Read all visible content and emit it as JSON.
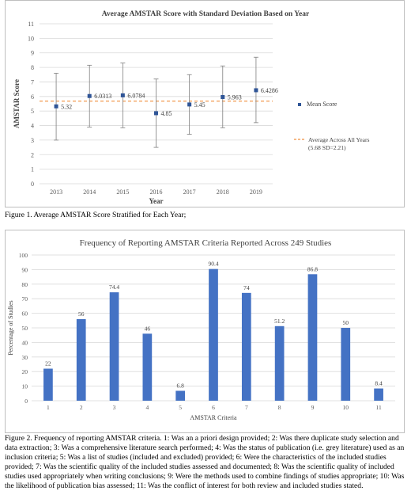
{
  "chart_data": [
    {
      "type": "scatter",
      "title": "Average AMSTAR Score with Standard Deviation Based on Year",
      "xlabel": "Year",
      "ylabel": "AMSTAR Score",
      "ylim": [
        0,
        11
      ],
      "yticks": [
        0,
        1,
        2,
        3,
        4,
        5,
        6,
        7,
        8,
        9,
        10,
        11
      ],
      "categories": [
        "2013",
        "2014",
        "2015",
        "2016",
        "2017",
        "2018",
        "2019"
      ],
      "series": [
        {
          "name": "Mean Score",
          "values": [
            5.32,
            6.0313,
            6.0784,
            4.85,
            5.45,
            5.963,
            6.4286
          ],
          "labels": [
            "5.32",
            "6.0313",
            "6.0784",
            "4.85",
            "5.45",
            "5.963",
            "6.4286"
          ],
          "error_low": [
            3.0,
            3.9,
            3.85,
            2.5,
            3.4,
            3.85,
            4.2
          ],
          "error_high": [
            7.6,
            8.15,
            8.3,
            7.2,
            7.5,
            8.1,
            8.7
          ],
          "color": "#2f5597"
        }
      ],
      "reference_line": {
        "value": 5.68,
        "label_line1": "Average Across All Years",
        "label_line2": "(5.68 SD=2.21)",
        "color": "#f4a460"
      },
      "grid": true,
      "legend": "right"
    },
    {
      "type": "bar",
      "title": "Frequency of Reporting AMSTAR Criteria Reported Across 249 Studies",
      "xlabel": "AMSTAR Criteria",
      "ylabel": "Percentage of Studies",
      "ylim": [
        0,
        100
      ],
      "yticks": [
        0,
        10,
        20,
        30,
        40,
        50,
        60,
        70,
        80,
        90,
        100
      ],
      "categories": [
        "1",
        "2",
        "3",
        "4",
        "5",
        "6",
        "7",
        "8",
        "9",
        "10",
        "11"
      ],
      "values": [
        22,
        56,
        74.4,
        46,
        6.8,
        90.4,
        74,
        51.2,
        86.8,
        50,
        8.4
      ],
      "labels": [
        "22",
        "56",
        "74.4",
        "46",
        "6.8",
        "90.4",
        "74",
        "51.2",
        "86.8",
        "50",
        "8.4"
      ],
      "color": "#4472c4",
      "grid": true
    }
  ],
  "captions": {
    "fig1": "Figure 1. Average AMSTAR Score Stratified for Each Year;",
    "fig2": "Figure 2. Frequency of reporting AMSTAR criteria. 1: Was an a priori design provided; 2: Was there duplicate study selection and data extraction; 3: Was a comprehensive literature search performed; 4: Was the status of publication (i.e. grey literature) used as an inclusion criteria; 5: Was a list of studies (included and excluded) provided; 6: Were the characteristics of the included studies provided; 7: Was the scientific quality of the included studies assessed and documented; 8: Was the scientific quality of included studies used appropriately when writing conclusions; 9: Were the methods used to combine findings of studies appropriate; 10: Was the likelihood of publication bias assessed; 11: Was the conflict of interest for both review and included studies stated."
  }
}
